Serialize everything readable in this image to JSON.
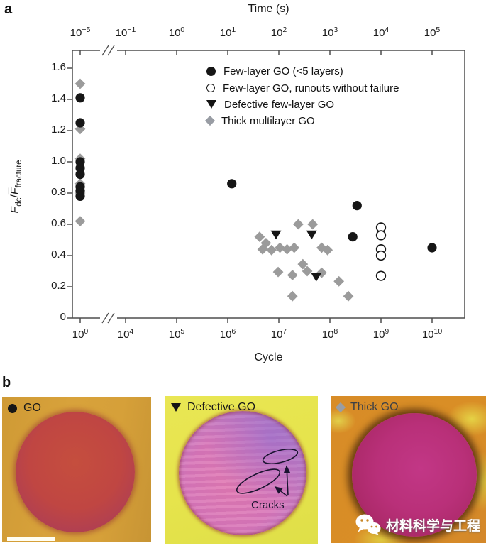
{
  "panel_a": {
    "label": "a",
    "top_axis": {
      "title": "Time (s)"
    },
    "bottom_axis": {
      "title": "Cycle"
    },
    "y_axis": {
      "f1": "F",
      "sub1": "dc",
      "sep": "/",
      "f2": "F",
      "sub2": "fracture"
    },
    "legend": [
      {
        "marker": "filled-circle",
        "label": "Few-layer GO (<5 layers)"
      },
      {
        "marker": "open-circle",
        "label": "Few-layer GO, runouts without failure"
      },
      {
        "marker": "filled-triangle",
        "label": "Defective few-layer GO"
      },
      {
        "marker": "gray-diamond",
        "label": "Thick multilayer GO"
      }
    ]
  },
  "chart_data": {
    "type": "scatter",
    "xlabel": "Cycle",
    "x2label": "Time (s)",
    "ylabel": "Fdc/Ffracture (normalized force ratio)",
    "x_scale": "log10, broken axis between 10^0 and 10^4",
    "ylim": [
      0,
      1.7
    ],
    "y_tick_labels": [
      "0",
      "0.2",
      "0.4",
      "0.6",
      "0.8",
      "1.0",
      "1.2",
      "1.4",
      "1.6"
    ],
    "x_tick_exponents_cycle": [
      0,
      4,
      5,
      6,
      7,
      8,
      9,
      10
    ],
    "x_tick_exponents_time": [
      -5,
      -1,
      0,
      1,
      2,
      3,
      4,
      5
    ],
    "series": [
      {
        "name": "Thick multilayer GO",
        "marker": "gray-diamond",
        "color": "#9b9b9b",
        "points": [
          [
            1,
            1.5
          ],
          [
            1,
            1.21
          ],
          [
            1,
            1.02
          ],
          [
            1,
            0.86
          ],
          [
            1,
            0.8
          ],
          [
            1,
            0.62
          ],
          [
            4200000.0,
            0.52
          ],
          [
            5600000.0,
            0.48
          ],
          [
            4800000.0,
            0.44
          ],
          [
            7200000.0,
            0.435
          ],
          [
            10500000.0,
            0.45
          ],
          [
            14500000.0,
            0.44
          ],
          [
            20000000.0,
            0.45
          ],
          [
            24000000.0,
            0.6
          ],
          [
            46000000.0,
            0.6
          ],
          [
            69000000.0,
            0.45
          ],
          [
            90000000.0,
            0.435
          ],
          [
            29500000.0,
            0.345
          ],
          [
            36000000.0,
            0.3
          ],
          [
            9700000.0,
            0.295
          ],
          [
            18500000.0,
            0.275
          ],
          [
            69000000.0,
            0.29
          ],
          [
            150000000.0,
            0.235
          ],
          [
            18500000.0,
            0.14
          ],
          [
            230000000.0,
            0.14
          ]
        ]
      },
      {
        "name": "Defective few-layer GO",
        "marker": "filled-triangle",
        "color": "#161616",
        "points": [
          [
            8800000.0,
            0.535
          ],
          [
            44000000.0,
            0.535
          ],
          [
            54000000.0,
            0.265
          ]
        ]
      },
      {
        "name": "Few-layer GO (<5 layers)",
        "marker": "filled-circle",
        "color": "#161616",
        "points": [
          [
            1,
            1.41
          ],
          [
            1,
            1.25
          ],
          [
            1,
            1.0
          ],
          [
            1,
            0.96
          ],
          [
            1,
            0.92
          ],
          [
            1,
            0.84
          ],
          [
            1,
            0.815
          ],
          [
            1,
            0.78
          ],
          [
            1200000.0,
            0.86
          ],
          [
            340000000.0,
            0.72
          ],
          [
            280000000.0,
            0.52
          ],
          [
            10000000000.0,
            0.45
          ]
        ]
      },
      {
        "name": "Few-layer GO, runouts without failure",
        "marker": "open-circle",
        "color": "#ffffff",
        "points": [
          [
            1000000000.0,
            0.58
          ],
          [
            1000000000.0,
            0.53
          ],
          [
            1000000000.0,
            0.44
          ],
          [
            1000000000.0,
            0.4
          ],
          [
            1000000000.0,
            0.27
          ]
        ]
      }
    ]
  },
  "panel_b": {
    "label": "b",
    "images": [
      {
        "marker": "filled-circle",
        "title": "GO"
      },
      {
        "marker": "filled-triangle",
        "title": "Defective GO",
        "annotation": "Cracks"
      },
      {
        "marker": "gray-diamond",
        "title": "Thick GO",
        "watermark": "材料科学与工程"
      }
    ]
  },
  "colors": {
    "marker_black": "#161616",
    "marker_gray": "#9b9b9b",
    "axis": "#4d4d4d",
    "img_go_bg": "#d8a23b",
    "img_go_membrane": "#c04642",
    "img_def_bg": "#e6e44c",
    "img_def_membrane": "#d977b9",
    "img_thick_bg": "#d98e26",
    "img_thick_membrane": "#b93079"
  }
}
